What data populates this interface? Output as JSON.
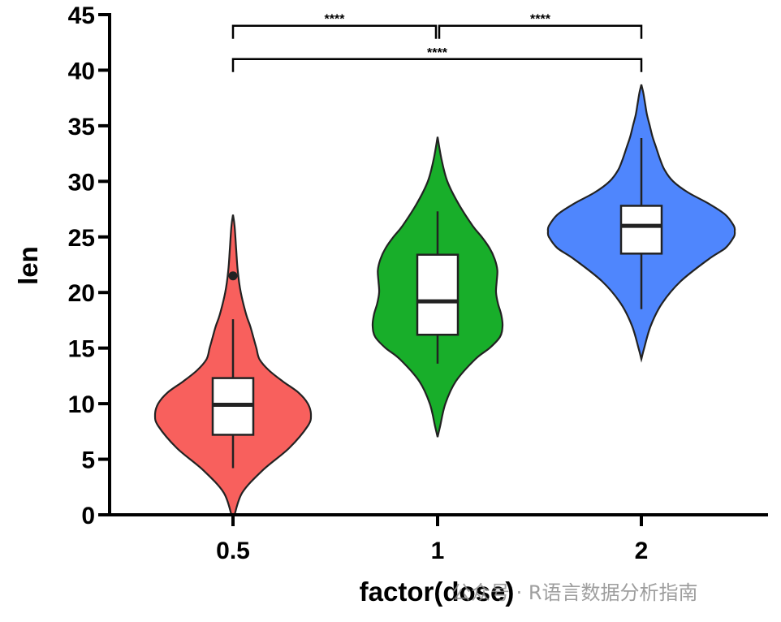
{
  "chart_data": {
    "type": "violin",
    "title": "",
    "xlabel": "factor(dose)",
    "ylabel": "len",
    "ylim": [
      0,
      45
    ],
    "y_ticks": [
      "0",
      "5",
      "10",
      "15",
      "20",
      "25",
      "30",
      "35",
      "40",
      "45"
    ],
    "categories": [
      "0.5",
      "1",
      "2"
    ],
    "groups": [
      {
        "category": "0.5",
        "color": "#F8605D",
        "range": [
          0,
          27
        ],
        "density_profile": [
          [
            0,
            0.02
          ],
          [
            2,
            0.12
          ],
          [
            4,
            0.38
          ],
          [
            6,
            0.72
          ],
          [
            8,
            0.96
          ],
          [
            9,
            1.0
          ],
          [
            10,
            0.96
          ],
          [
            11,
            0.84
          ],
          [
            12,
            0.64
          ],
          [
            13,
            0.46
          ],
          [
            14,
            0.34
          ],
          [
            15,
            0.3
          ],
          [
            16,
            0.26
          ],
          [
            17,
            0.22
          ],
          [
            18,
            0.17
          ],
          [
            20,
            0.1
          ],
          [
            22,
            0.06
          ],
          [
            24,
            0.04
          ],
          [
            26,
            0.02
          ],
          [
            27,
            0.0
          ]
        ],
        "box": {
          "q1": 7.2,
          "median": 9.9,
          "q3": 12.3,
          "whisker_low": 4.2,
          "whisker_high": 17.6
        },
        "outliers": [
          21.5
        ]
      },
      {
        "category": "1",
        "color": "#18AE2A",
        "range": [
          7,
          34
        ],
        "density_profile": [
          [
            7,
            0.0
          ],
          [
            8,
            0.04
          ],
          [
            10,
            0.12
          ],
          [
            12,
            0.28
          ],
          [
            14,
            0.58
          ],
          [
            15,
            0.8
          ],
          [
            16,
            0.96
          ],
          [
            17,
            1.0
          ],
          [
            18,
            0.98
          ],
          [
            19,
            0.93
          ],
          [
            20,
            0.9
          ],
          [
            21,
            0.91
          ],
          [
            22,
            0.92
          ],
          [
            23,
            0.88
          ],
          [
            24,
            0.8
          ],
          [
            25,
            0.68
          ],
          [
            26,
            0.54
          ],
          [
            28,
            0.32
          ],
          [
            30,
            0.15
          ],
          [
            32,
            0.06
          ],
          [
            34,
            0.0
          ]
        ],
        "box": {
          "q1": 16.2,
          "median": 19.2,
          "q3": 23.4,
          "whisker_low": 13.6,
          "whisker_high": 27.3
        },
        "outliers": []
      },
      {
        "category": "2",
        "color": "#4F86FD",
        "range": [
          14,
          39
        ],
        "density_profile": [
          [
            14,
            0.0
          ],
          [
            15,
            0.03
          ],
          [
            17,
            0.1
          ],
          [
            19,
            0.22
          ],
          [
            21,
            0.42
          ],
          [
            23,
            0.72
          ],
          [
            24,
            0.9
          ],
          [
            25,
            0.99
          ],
          [
            25.5,
            1.0
          ],
          [
            26,
            0.99
          ],
          [
            27,
            0.9
          ],
          [
            28,
            0.72
          ],
          [
            29,
            0.5
          ],
          [
            30,
            0.34
          ],
          [
            31,
            0.25
          ],
          [
            32,
            0.2
          ],
          [
            33,
            0.16
          ],
          [
            34,
            0.12
          ],
          [
            35,
            0.09
          ],
          [
            36,
            0.06
          ],
          [
            37,
            0.04
          ],
          [
            38,
            0.02
          ],
          [
            38.7,
            0.0
          ]
        ],
        "box": {
          "q1": 23.5,
          "median": 26.0,
          "q3": 27.8,
          "whisker_low": 18.5,
          "whisker_high": 33.9
        },
        "outliers": []
      }
    ],
    "comparisons": [
      {
        "group1": "0.5",
        "group2": "1",
        "label": "****",
        "y": 44
      },
      {
        "group1": "1",
        "group2": "2",
        "label": "****",
        "y": 44
      },
      {
        "group1": "0.5",
        "group2": "2",
        "label": "****",
        "y": 41
      }
    ]
  },
  "watermark": "公众号 · R语言数据分析指南"
}
